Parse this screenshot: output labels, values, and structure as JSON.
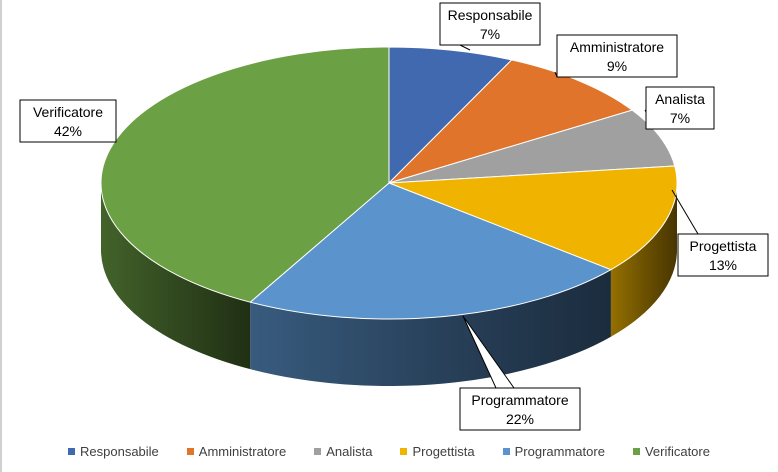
{
  "chart_data": {
    "type": "pie",
    "style": "3d",
    "title": "",
    "categories": [
      "Responsabile",
      "Amministratore",
      "Analista",
      "Progettista",
      "Programmatore",
      "Verificatore"
    ],
    "values": [
      7,
      9,
      7,
      13,
      22,
      42
    ],
    "labels": [
      "7%",
      "9%",
      "7%",
      "13%",
      "22%",
      "42%"
    ],
    "colors": [
      "#4169b0",
      "#e0742a",
      "#a0a0a0",
      "#f0b400",
      "#5b93cc",
      "#6ca044"
    ],
    "legend": "bottom",
    "data_labels": "outside-callout"
  }
}
